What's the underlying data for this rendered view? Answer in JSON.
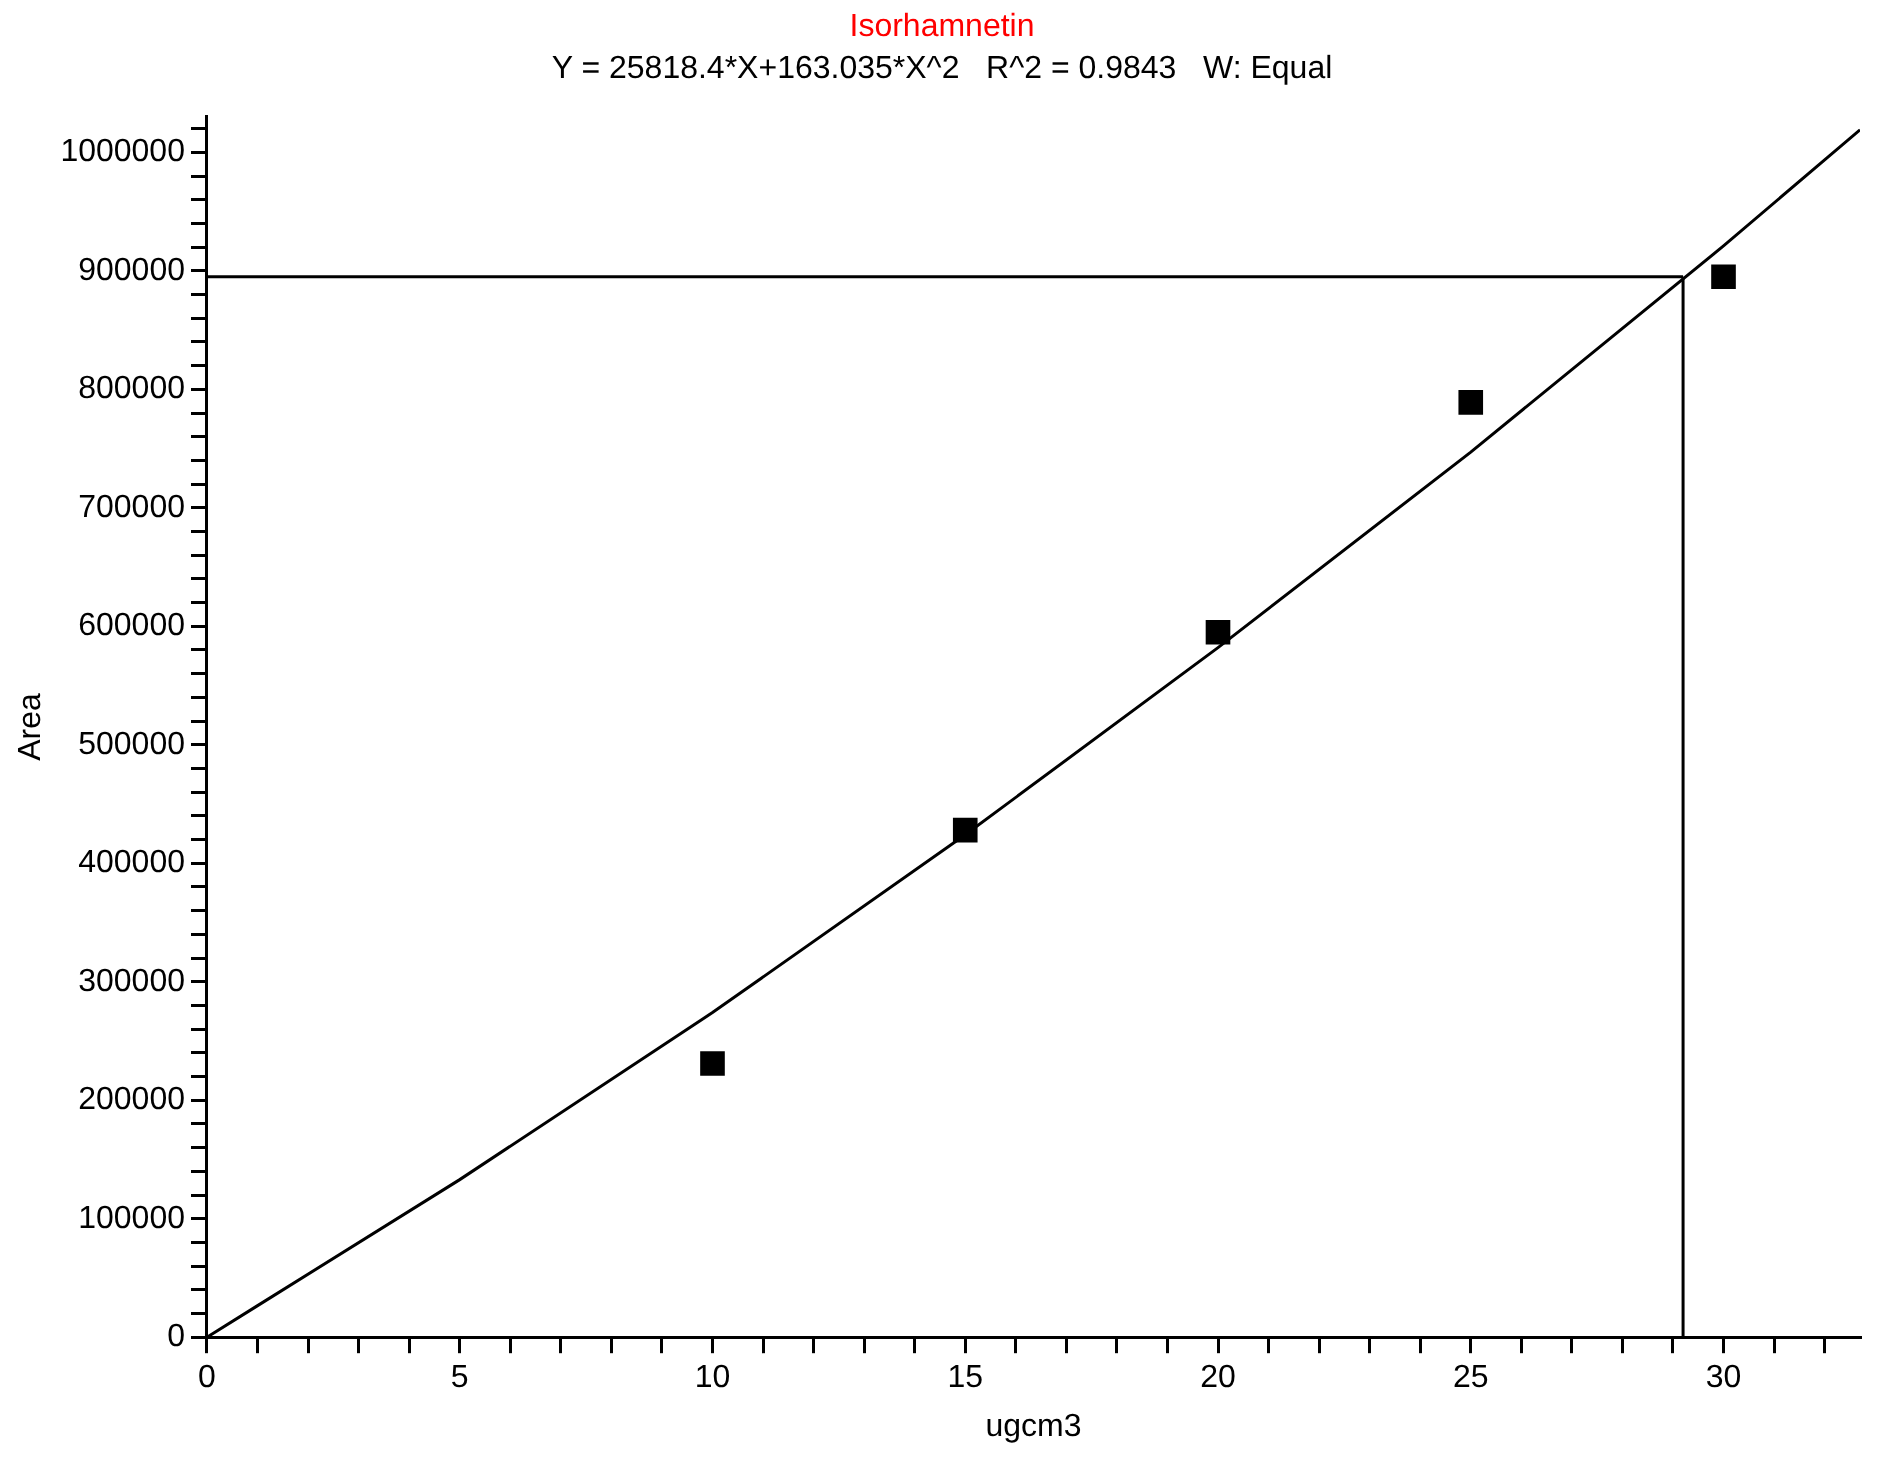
{
  "chart_data": {
    "type": "scatter",
    "title": "Isorhamnetin",
    "subtitle": "Y = 25818.4*X+163.035*X^2   R^2 = 0.9843   W: Equal",
    "xlabel": "ugcm3",
    "ylabel": "Area",
    "xlim": [
      0,
      32.7
    ],
    "ylim": [
      0,
      1030000
    ],
    "xticks": [
      0,
      {
        "value": 1,
        "label": null
      },
      {
        "value": 2,
        "label": null
      },
      {
        "value": 3,
        "label": null
      },
      {
        "value": 4,
        "label": null
      },
      5,
      {
        "value": 6,
        "label": null
      },
      {
        "value": 7,
        "label": null
      },
      {
        "value": 8,
        "label": null
      },
      {
        "value": 9,
        "label": null
      },
      10,
      {
        "value": 11,
        "label": null
      },
      {
        "value": 12,
        "label": null
      },
      {
        "value": 13,
        "label": null
      },
      {
        "value": 14,
        "label": null
      },
      15,
      {
        "value": 16,
        "label": null
      },
      {
        "value": 17,
        "label": null
      },
      {
        "value": 18,
        "label": null
      },
      {
        "value": 19,
        "label": null
      },
      20,
      {
        "value": 21,
        "label": null
      },
      {
        "value": 22,
        "label": null
      },
      {
        "value": 23,
        "label": null
      },
      {
        "value": 24,
        "label": null
      },
      25,
      {
        "value": 26,
        "label": null
      },
      {
        "value": 27,
        "label": null
      },
      {
        "value": 28,
        "label": null
      },
      {
        "value": 29,
        "label": null
      },
      30,
      {
        "value": 31,
        "label": null
      },
      {
        "value": 32,
        "label": null
      }
    ],
    "yticks": [
      0,
      {
        "value": 20000,
        "label": null
      },
      {
        "value": 40000,
        "label": null
      },
      {
        "value": 60000,
        "label": null
      },
      {
        "value": 80000,
        "label": null
      },
      100000,
      {
        "value": 120000,
        "label": null
      },
      {
        "value": 140000,
        "label": null
      },
      {
        "value": 160000,
        "label": null
      },
      {
        "value": 180000,
        "label": null
      },
      200000,
      {
        "value": 220000,
        "label": null
      },
      {
        "value": 240000,
        "label": null
      },
      {
        "value": 260000,
        "label": null
      },
      {
        "value": 280000,
        "label": null
      },
      300000,
      {
        "value": 320000,
        "label": null
      },
      {
        "value": 340000,
        "label": null
      },
      {
        "value": 360000,
        "label": null
      },
      {
        "value": 380000,
        "label": null
      },
      400000,
      {
        "value": 420000,
        "label": null
      },
      {
        "value": 440000,
        "label": null
      },
      {
        "value": 460000,
        "label": null
      },
      {
        "value": 480000,
        "label": null
      },
      500000,
      {
        "value": 520000,
        "label": null
      },
      {
        "value": 540000,
        "label": null
      },
      {
        "value": 560000,
        "label": null
      },
      {
        "value": 580000,
        "label": null
      },
      600000,
      {
        "value": 620000,
        "label": null
      },
      {
        "value": 640000,
        "label": null
      },
      {
        "value": 660000,
        "label": null
      },
      {
        "value": 680000,
        "label": null
      },
      700000,
      {
        "value": 720000,
        "label": null
      },
      {
        "value": 740000,
        "label": null
      },
      {
        "value": 760000,
        "label": null
      },
      {
        "value": 780000,
        "label": null
      },
      800000,
      {
        "value": 820000,
        "label": null
      },
      {
        "value": 840000,
        "label": null
      },
      {
        "value": 860000,
        "label": null
      },
      {
        "value": 880000,
        "label": null
      },
      900000,
      {
        "value": 920000,
        "label": null
      },
      {
        "value": 940000,
        "label": null
      },
      {
        "value": 960000,
        "label": null
      },
      {
        "value": 980000,
        "label": null
      },
      1000000,
      {
        "value": 1020000,
        "label": null
      }
    ],
    "series": [
      {
        "type": "scatter",
        "color": "#000000",
        "marker": "square",
        "x": [
          10,
          15,
          20,
          25,
          30
        ],
        "values": [
          231000,
          428000,
          595000,
          789000,
          895000
        ]
      },
      {
        "type": "line",
        "color": "#000000",
        "marker": "none",
        "x": [
          0,
          5,
          10,
          15,
          20,
          25,
          30,
          32.7
        ],
        "values": [
          0,
          133000,
          274000,
          424000,
          582000,
          747000,
          921000,
          1019000
        ]
      }
    ],
    "ref_lines": [
      {
        "axis": "y",
        "value": 895000,
        "color": "#000000"
      },
      {
        "axis": "x",
        "value": 29.2,
        "color": "#000000"
      }
    ],
    "grid": false,
    "legend": false
  }
}
